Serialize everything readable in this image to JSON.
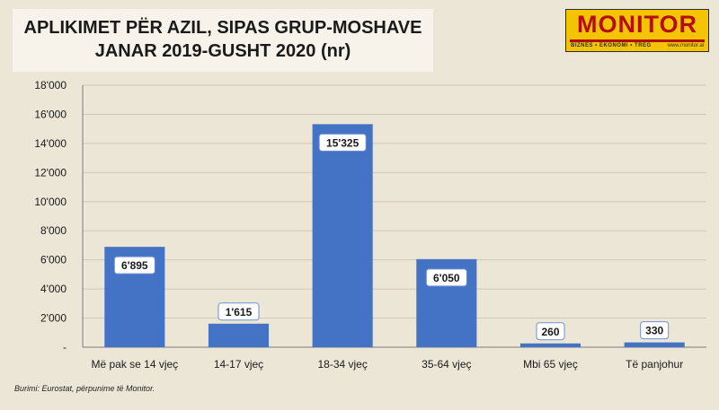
{
  "title": {
    "line1": "APLIKIMET PËR AZIL, SIPAS GRUP-MOSHAVE",
    "line2": "JANAR 2019-GUSHT 2020 (nr)"
  },
  "logo": {
    "word": "MONITOR",
    "tagline": "BIZNES  •  EKONOMI  •  TREG",
    "website": "www.monitor.al",
    "colors": {
      "background": "#f5c400",
      "text": "#b40d0d"
    }
  },
  "source": "Burimi: Eurostat, përpunime të Monitor.",
  "chart_data": {
    "type": "bar",
    "categories": [
      "Më pak se 14 vjeç",
      "14-17 vjeç",
      "18-34 vjeç",
      "35-64 vjeç",
      "Mbi 65 vjeç",
      "Të panjohur"
    ],
    "values": [
      6895,
      1615,
      15325,
      6050,
      260,
      330
    ],
    "data_labels": [
      "6'895",
      "1'615",
      "15'325",
      "6'050",
      "260",
      "330"
    ],
    "y_ticks": [
      0,
      2000,
      4000,
      6000,
      8000,
      10000,
      12000,
      14000,
      16000,
      18000
    ],
    "y_tick_labels": [
      "-",
      "2'000",
      "4'000",
      "6'000",
      "8'000",
      "10'000",
      "12'000",
      "14'000",
      "16'000",
      "18'000"
    ],
    "ylim": [
      0,
      18000
    ],
    "grid": true,
    "legend": "none",
    "bar_color": "#4472c4"
  }
}
